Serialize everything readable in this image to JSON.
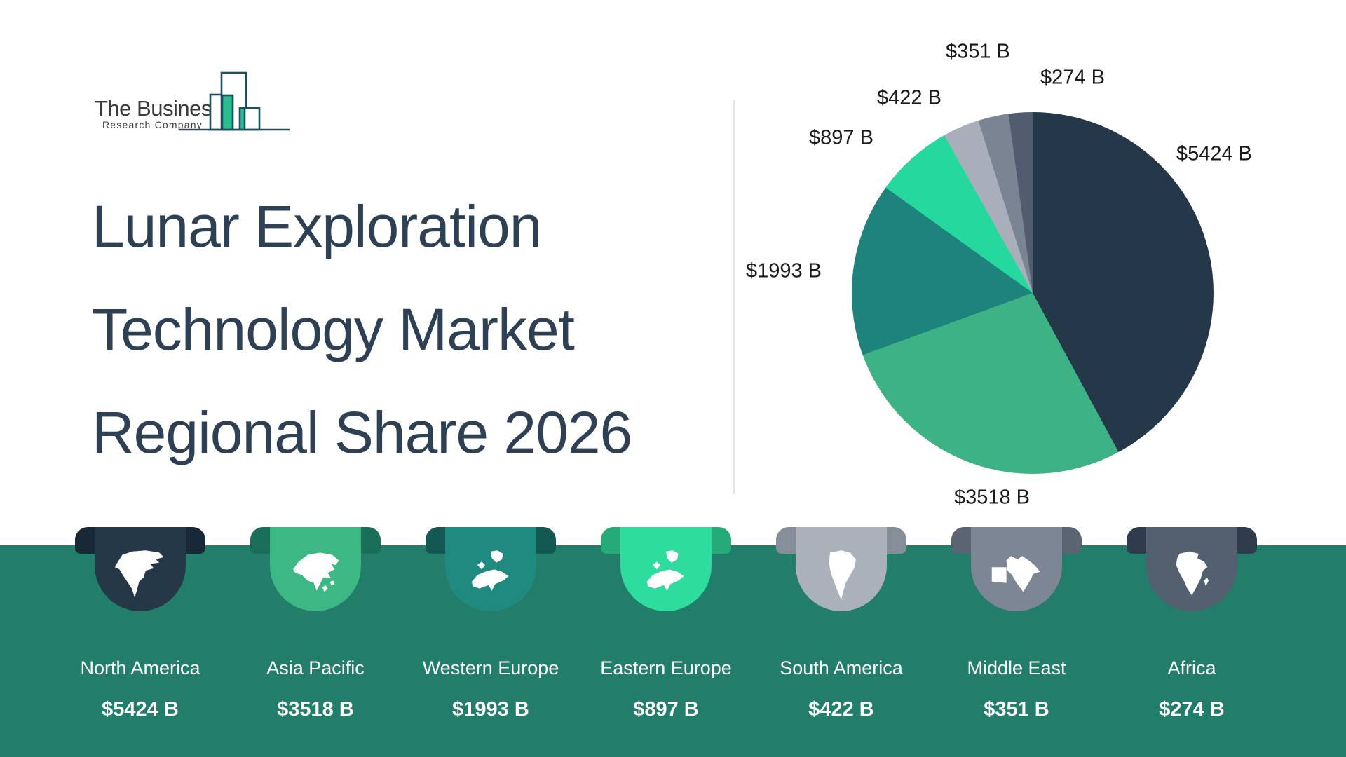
{
  "logo": {
    "company_line1": "The Business",
    "company_line2": "Research Company",
    "icon": "bar-chart-logo-icon"
  },
  "title": {
    "lines": [
      "Lunar Exploration",
      "Technology Market",
      "Regional Share 2026"
    ]
  },
  "chart_data": {
    "type": "pie",
    "title": "Lunar Exploration Technology Market Regional Share 2026",
    "unit": "USD billion",
    "categories": [
      "North America",
      "Asia Pacific",
      "Western Europe",
      "Eastern Europe",
      "South America",
      "Middle East",
      "Africa"
    ],
    "values": [
      5424,
      3518,
      1993,
      897,
      422,
      351,
      274
    ],
    "labels": [
      "$5424 B",
      "$3518 B",
      "$1993 B",
      "$897 B",
      "$422 B",
      "$351 B",
      "$274 B"
    ],
    "colors": [
      "#253849",
      "#3db284",
      "#1e837c",
      "#25d89e",
      "#a9aebb",
      "#7b8492",
      "#515c6e"
    ],
    "total": 12879,
    "start_angle_deg": 0,
    "direction": "clockwise",
    "legend_position": "bottom"
  },
  "regions": [
    {
      "name": "North America",
      "value_label": "$5424 B",
      "body_color": "#243848",
      "ear_color": "#182836",
      "icon": "north-america-map-icon"
    },
    {
      "name": "Asia Pacific",
      "value_label": "$3518 B",
      "body_color": "#3cb885",
      "ear_color": "#1b6e57",
      "icon": "asia-pacific-map-icon"
    },
    {
      "name": "Western Europe",
      "value_label": "$1993 B",
      "body_color": "#1f8a80",
      "ear_color": "#135852",
      "icon": "western-europe-map-icon"
    },
    {
      "name": "Eastern Europe",
      "value_label": "$897 B",
      "body_color": "#2edd9e",
      "ear_color": "#24ab77",
      "icon": "eastern-europe-map-icon"
    },
    {
      "name": "South America",
      "value_label": "$422 B",
      "body_color": "#aab1bb",
      "ear_color": "#868e9a",
      "icon": "south-america-map-icon"
    },
    {
      "name": "Middle East",
      "value_label": "$351 B",
      "body_color": "#7d8694",
      "ear_color": "#5a6472",
      "icon": "middle-east-map-icon"
    },
    {
      "name": "Africa",
      "value_label": "$274 B",
      "body_color": "#526070",
      "ear_color": "#2e3c4e",
      "icon": "africa-map-icon"
    }
  ],
  "theme": {
    "background": "#ffffff",
    "band_color": "#227d6a",
    "divider_color": "#e4e4e4",
    "title_color": "#2e4053",
    "pie_label_color": "#1a1a1a",
    "badge_text_color": "#ffffff",
    "logo_outline_color": "#1d4f63",
    "logo_accent_green": "#2cbd8e"
  }
}
